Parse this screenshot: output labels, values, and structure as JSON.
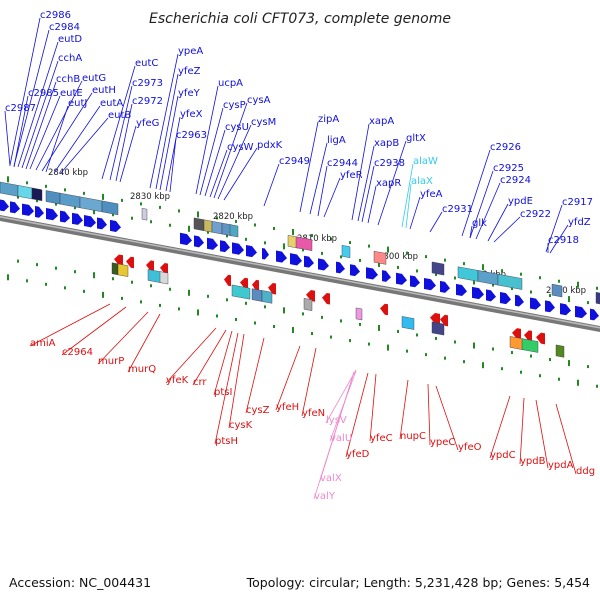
{
  "title": "Escherichia coli CFT073, complete genome",
  "footer": {
    "accession": "Accession: NC_004431",
    "summary": "Topology: circular; Length: 5,231,428 bp; Genes: 5,454"
  },
  "colors": {
    "forward": "#1010dd",
    "reverse": "#dd1010",
    "rna_forward": "#33ccee",
    "rna_reverse": "#ee88cc",
    "backbone": "#888888",
    "tick": "#228822"
  },
  "kbp_marks": [
    "2840 kbp",
    "2830 kbp",
    "2820 kbp",
    "2810 kbp",
    "2800 kbp",
    "2790 kbp",
    "2780 kbp"
  ],
  "forward_genes": [
    "c2986",
    "c2984",
    "eutD",
    "cchA",
    "cchB",
    "c2985",
    "eutE",
    "eutG",
    "eutH",
    "eutJ",
    "eutA",
    "eutB",
    "c2987",
    "eutC",
    "c2973",
    "c2972",
    "yfeG",
    "ypeA",
    "yfeZ",
    "yfeY",
    "yfeX",
    "c2963",
    "ucpA",
    "cysP",
    "cysA",
    "cysU",
    "cysM",
    "cysW",
    "pdxK",
    "c2949",
    "zipA",
    "ligA",
    "c2944",
    "yfeR",
    "xapA",
    "xapB",
    "c2938",
    "gltX",
    "xapR",
    "alaW",
    "alaX",
    "yfeA",
    "c2931",
    "c2926",
    "c2925",
    "c2924",
    "glk",
    "ypdE",
    "c2922",
    "c2917",
    "yfdZ",
    "c2918"
  ],
  "reverse_genes": [
    "amiA",
    "c2964",
    "murP",
    "murQ",
    "yfeK",
    "crr",
    "ptsI",
    "ptsH",
    "cysK",
    "cysZ",
    "yfeH",
    "yfeN",
    "lysV",
    "valU",
    "yfeD",
    "valX",
    "valY",
    "yfeC",
    "nupC",
    "ypeC",
    "yfeO",
    "ypdC",
    "ypdB",
    "ypdA",
    "ddg"
  ]
}
